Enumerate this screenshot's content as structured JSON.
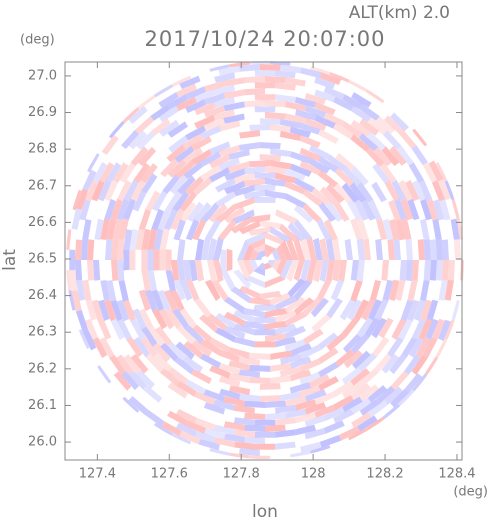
{
  "chart_data": {
    "type": "ppi",
    "title": "2017/10/24 20:07:00",
    "altitude_label": "ALT(km) 2.0",
    "x_label": "lon",
    "y_label": "lat",
    "x_unit": "(deg)",
    "y_unit": "(deg)",
    "xlim": [
      127.31,
      128.414
    ],
    "ylim": [
      25.951,
      27.038
    ],
    "xticks": [
      127.4,
      127.6,
      127.8,
      128.0,
      128.2,
      128.4
    ],
    "yticks": [
      {
        "value": 26,
        "label": "26.0"
      },
      26.1,
      26.2,
      26.3,
      26.4,
      26.5,
      26.6,
      26.7,
      26.8,
      26.9,
      {
        "value": 27,
        "label": "27.0"
      }
    ],
    "colors": [
      "#ffb4b4",
      "#b9b9ff"
    ]
  }
}
